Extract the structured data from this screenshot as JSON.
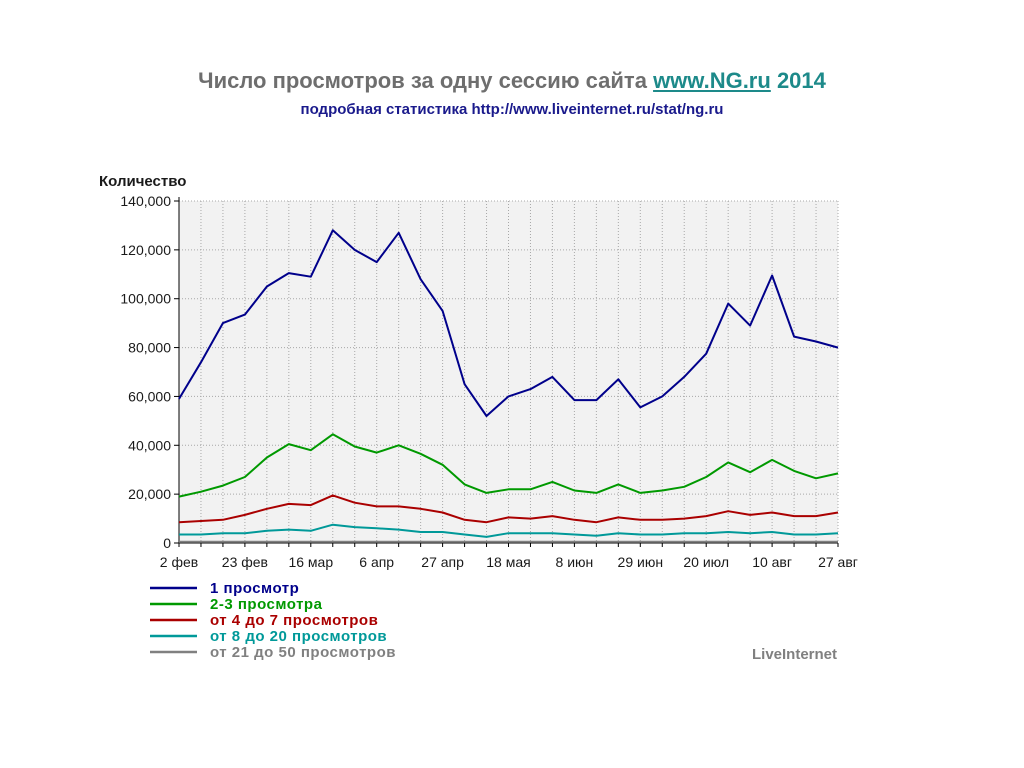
{
  "slide": {
    "title_prefix": "Число просмотров за одну сессию сайта",
    "title_link": "www.NG.ru",
    "title_year": "2014",
    "subtitle": "подробная статистика http://www.liveinternet.ru/stat/ng.ru"
  },
  "chart_data": {
    "type": "line",
    "ylabel": "Количество",
    "ylim": [
      0,
      140000
    ],
    "y_ticks": [
      0,
      20000,
      40000,
      60000,
      80000,
      100000,
      120000,
      140000
    ],
    "y_tick_labels": [
      "0",
      "20,000",
      "40,000",
      "60,000",
      "80,000",
      "100,000",
      "120,000",
      "140,000"
    ],
    "x_tick_labels": [
      "2 фев",
      "23 фев",
      "16 мар",
      "6 апр",
      "27 апр",
      "18 мая",
      "8 июн",
      "29 июн",
      "20 июл",
      "10 авг",
      "27 авг"
    ],
    "x_tick_indices": [
      0,
      3,
      6,
      9,
      12,
      15,
      18,
      21,
      24,
      27,
      30
    ],
    "grid": true,
    "legend_position": "bottom-left",
    "series": [
      {
        "name": "1 просмотр",
        "color": "#00008b",
        "values": [
          59000,
          74000,
          90000,
          93500,
          105000,
          110500,
          109000,
          128000,
          120000,
          115000,
          127000,
          108000,
          95000,
          65000,
          52000,
          60000,
          63000,
          68000,
          58500,
          58500,
          67000,
          55500,
          60000,
          68000,
          77500,
          98000,
          89000,
          109500,
          84500,
          82500,
          80000
        ]
      },
      {
        "name": "2-3 просмотра",
        "color": "#009900",
        "values": [
          19000,
          21000,
          23500,
          27000,
          35000,
          40500,
          38000,
          44500,
          39500,
          37000,
          40000,
          36500,
          32000,
          24000,
          20500,
          22000,
          22000,
          25000,
          21500,
          20500,
          24000,
          20500,
          21500,
          23000,
          27000,
          33000,
          29000,
          34000,
          29500,
          26500,
          28500
        ]
      },
      {
        "name": "от 4 до 7 просмотров",
        "color": "#aa0000",
        "values": [
          8500,
          9000,
          9500,
          11500,
          14000,
          16000,
          15500,
          19500,
          16500,
          15000,
          15000,
          14000,
          12500,
          9500,
          8500,
          10500,
          10000,
          11000,
          9500,
          8500,
          10500,
          9500,
          9500,
          10000,
          11000,
          13000,
          11500,
          12500,
          11000,
          11000,
          12500
        ]
      },
      {
        "name": "от 8 до 20 просмотров",
        "color": "#009999",
        "values": [
          3500,
          3500,
          4000,
          4000,
          5000,
          5500,
          5000,
          7500,
          6500,
          6000,
          5500,
          4500,
          4500,
          3500,
          2500,
          4000,
          4000,
          4000,
          3500,
          3000,
          4000,
          3500,
          3500,
          4000,
          4000,
          4500,
          4000,
          4500,
          3500,
          3500,
          4000
        ]
      },
      {
        "name": "от 21 до 50 просмотров",
        "color": "#808080",
        "values": [
          500,
          500,
          500,
          500,
          500,
          500,
          500,
          500,
          500,
          500,
          500,
          500,
          500,
          500,
          500,
          500,
          500,
          500,
          500,
          500,
          500,
          500,
          500,
          500,
          500,
          500,
          500,
          500,
          500,
          500,
          500
        ]
      }
    ]
  },
  "watermark": "LiveInternet"
}
